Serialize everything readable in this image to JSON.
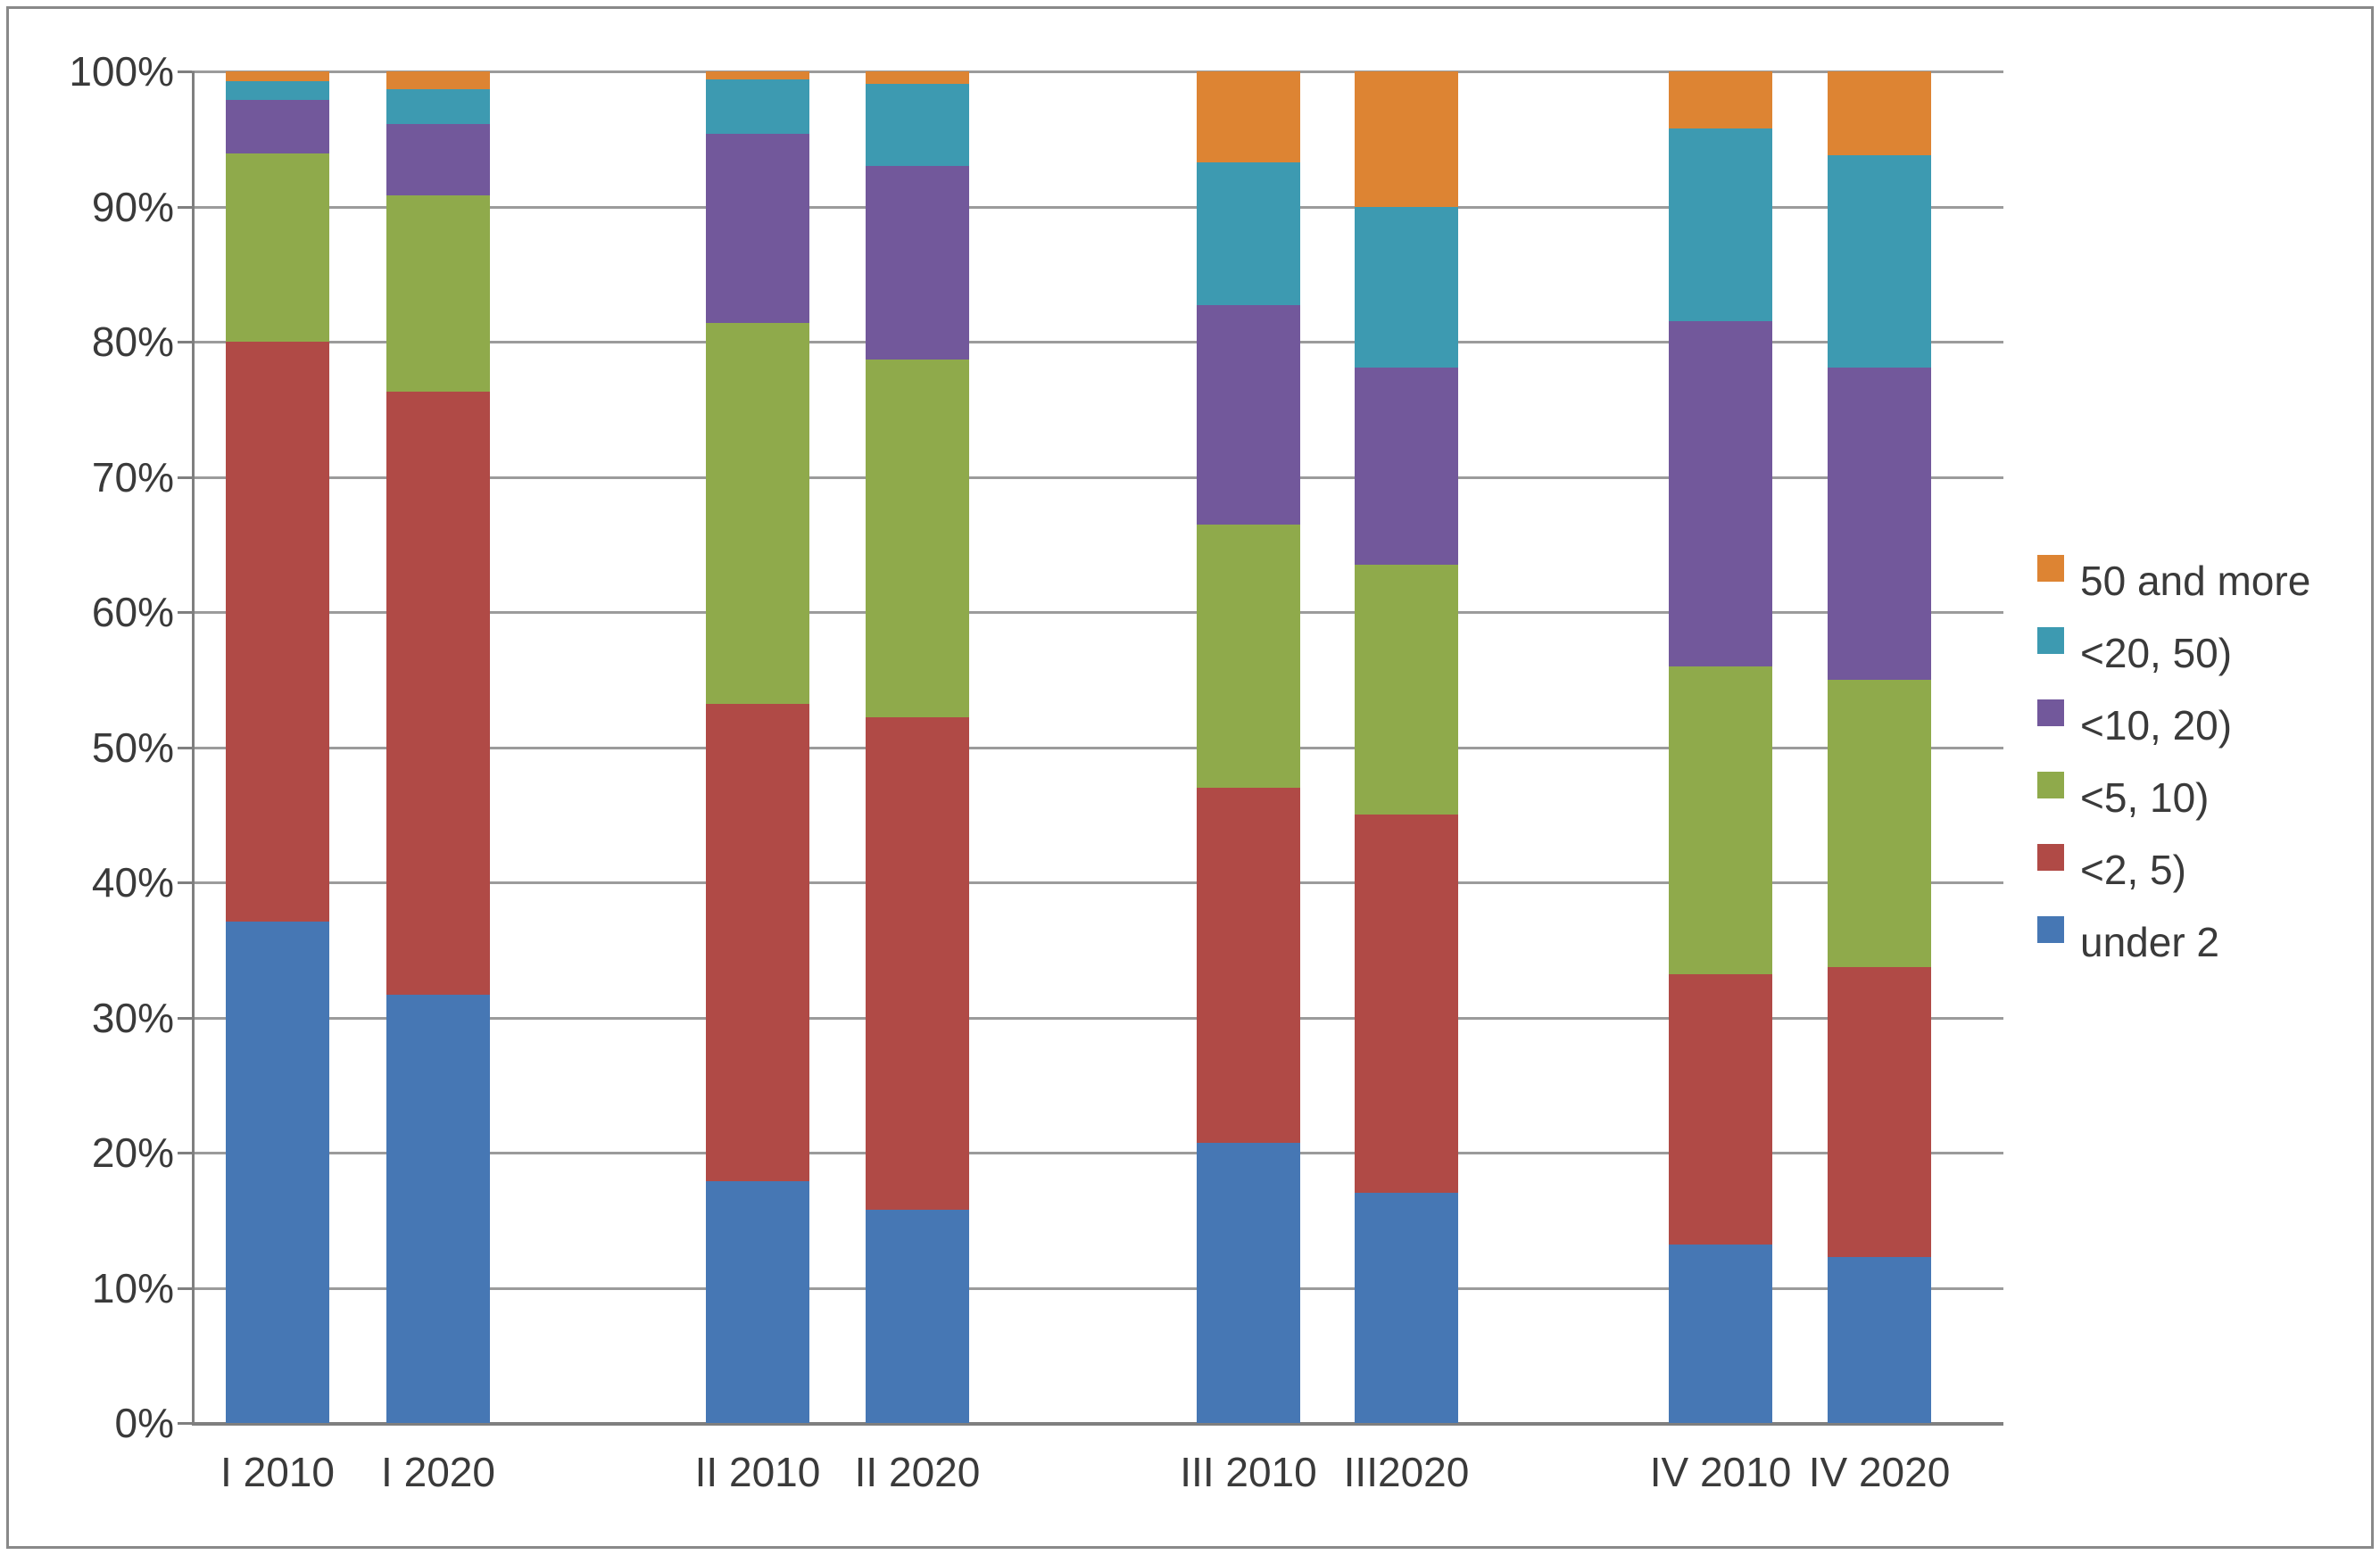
{
  "chart_data": {
    "type": "bar",
    "stacked": true,
    "units": "percent",
    "title": "",
    "xlabel": "",
    "ylabel": "",
    "ylim": [
      0,
      100
    ],
    "grid": true,
    "legend_position": "right",
    "categories": [
      "I 2010",
      "I 2020",
      "II 2010",
      "II 2020",
      "III 2010",
      "III2020",
      "IV 2010",
      "IV 2020"
    ],
    "series": [
      {
        "name": "under 2",
        "color": "#4677B4",
        "values": [
          37.1,
          31.7,
          17.9,
          15.8,
          20.7,
          17.0,
          13.2,
          12.3
        ]
      },
      {
        "name": "<2, 5)",
        "color": "#B04A46",
        "values": [
          42.9,
          44.6,
          35.3,
          36.4,
          26.3,
          28.0,
          20.0,
          21.4
        ]
      },
      {
        "name": "<5, 10)",
        "color": "#8FAA4B",
        "values": [
          13.9,
          14.5,
          28.2,
          26.5,
          19.5,
          18.5,
          22.8,
          21.3
        ]
      },
      {
        "name": "<10, 20)",
        "color": "#72589B",
        "values": [
          4.0,
          5.3,
          14.0,
          14.3,
          16.2,
          14.6,
          25.5,
          23.1
        ]
      },
      {
        "name": "<20, 50)",
        "color": "#3D9AB1",
        "values": [
          1.4,
          2.6,
          4.0,
          6.1,
          10.6,
          11.9,
          14.3,
          15.7
        ]
      },
      {
        "name": "50 and more",
        "color": "#DD8433",
        "values": [
          0.7,
          1.3,
          0.6,
          0.9,
          6.7,
          10.0,
          4.2,
          6.2
        ]
      }
    ],
    "legend_order_top_to_bottom": [
      "50 and more",
      "<20, 50)",
      "<10, 20)",
      "<5, 10)",
      "<2, 5)",
      "under 2"
    ],
    "y_ticks": [
      "0%",
      "10%",
      "20%",
      "30%",
      "40%",
      "50%",
      "60%",
      "70%",
      "80%",
      "90%",
      "100%"
    ]
  }
}
